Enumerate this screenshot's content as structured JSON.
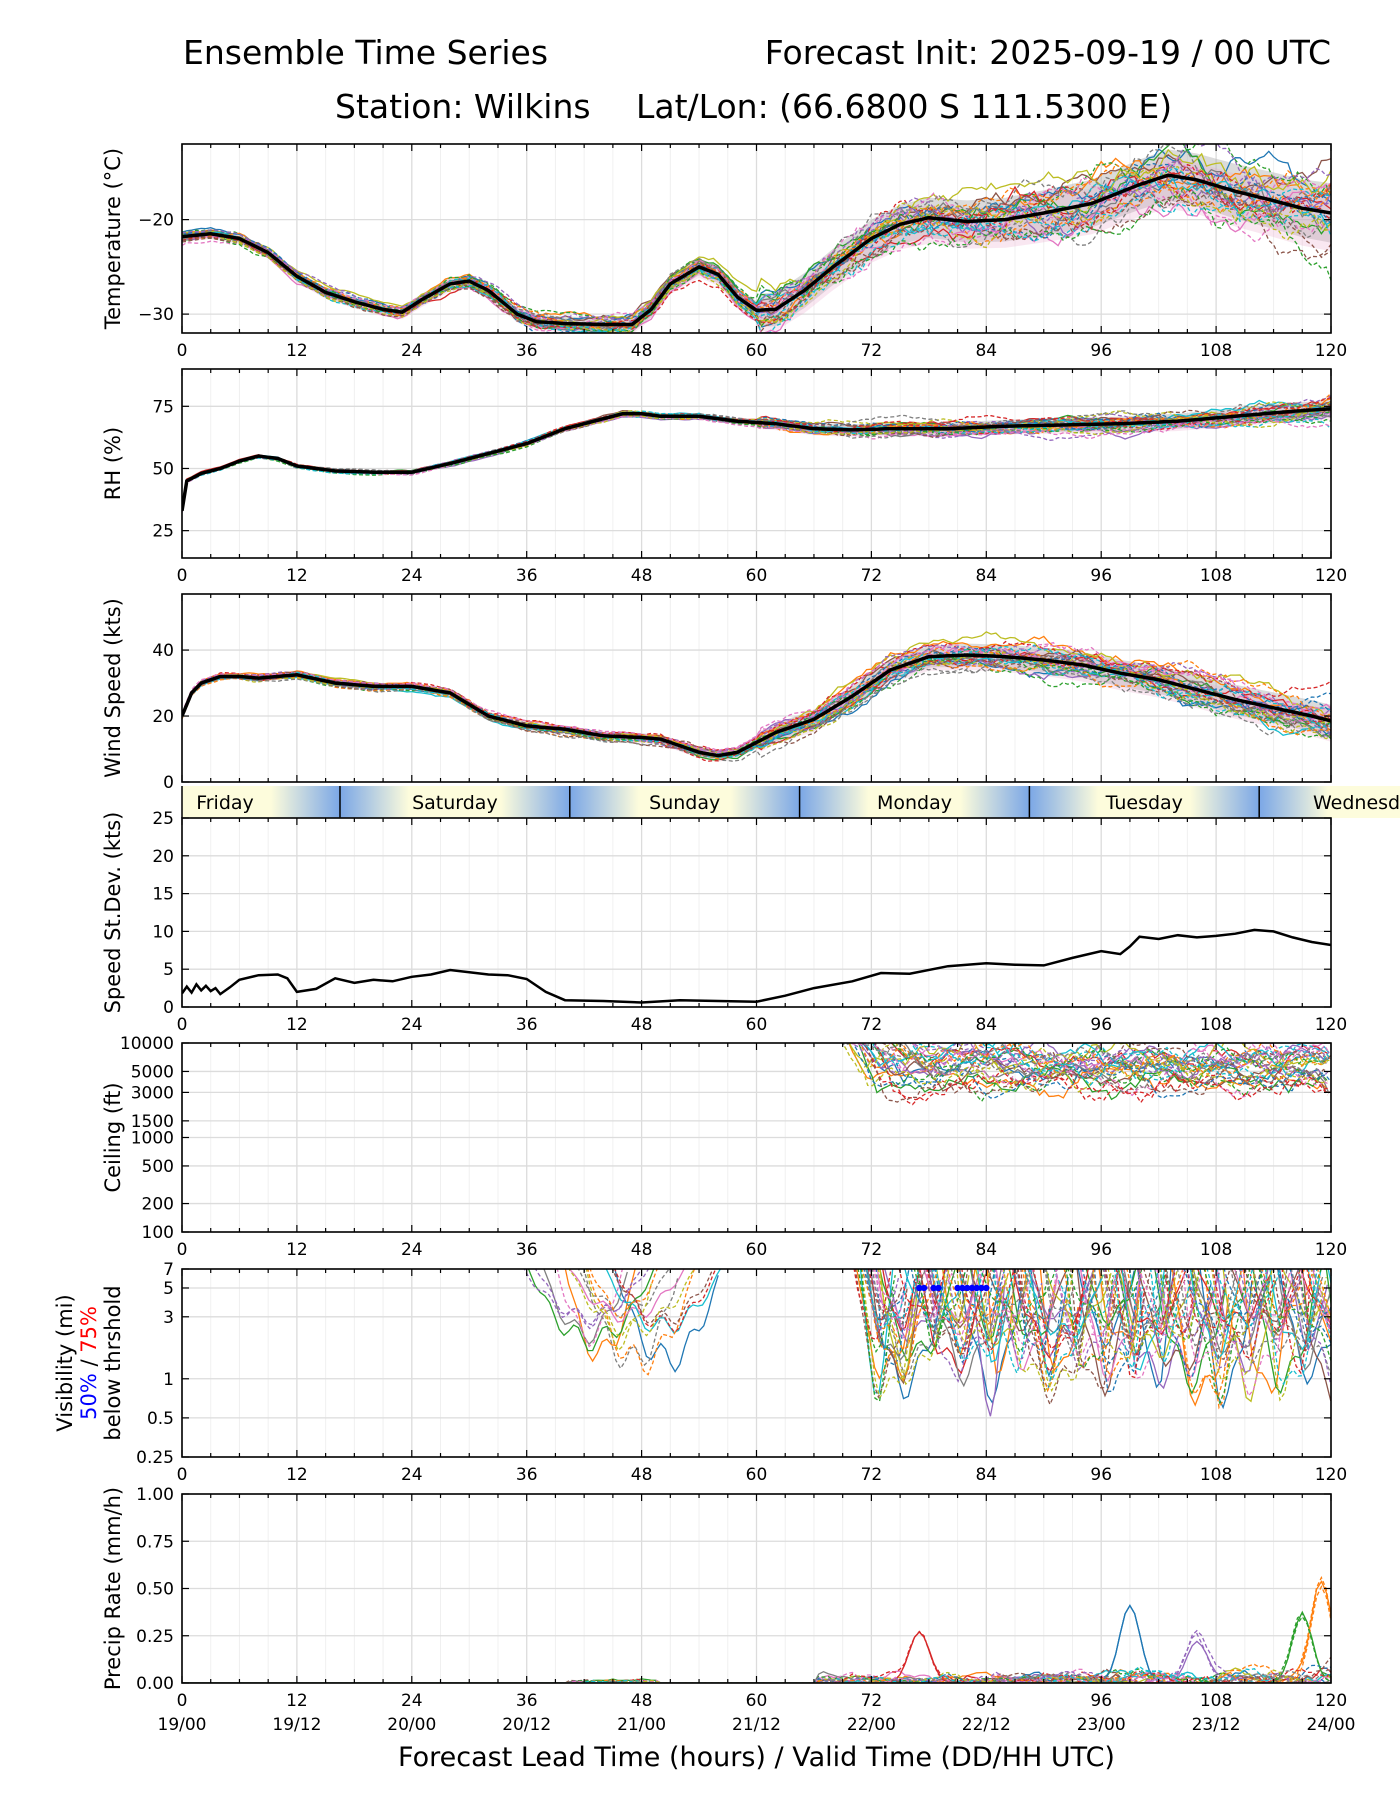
{
  "header": {
    "title_left": "Ensemble Time Series",
    "title_right": "Forecast Init: 2025-09-19 / 00 UTC",
    "station": "Station: Wilkins",
    "latlon": "Lat/Lon: (66.6800 S 111.5300 E)"
  },
  "colors": {
    "mean": "#000000",
    "members": [
      "#1f77b4",
      "#ff7f0e",
      "#2ca02c",
      "#d62728",
      "#9467bd",
      "#8c564b",
      "#e377c2",
      "#7f7f7f",
      "#bcbd22",
      "#17becf"
    ],
    "day_light": "#fdfcdc",
    "day_dark": "#7ba7e6",
    "vis_50": "#0000ff",
    "vis_75": "#ff0000"
  },
  "day_bar": {
    "labels": [
      "Friday",
      "Saturday",
      "Sunday",
      "Monday",
      "Tuesday",
      "Wednesday"
    ]
  },
  "chart_data": [
    {
      "type": "line",
      "name": "temperature",
      "ylabel": "Temperature (°C)",
      "xlim": [
        0,
        120
      ],
      "ylim": [
        -32,
        -12
      ],
      "yticks": [
        -30,
        -20
      ],
      "ytick_labels": [
        "−30",
        "−20"
      ],
      "xticks": [
        0,
        12,
        24,
        36,
        48,
        60,
        72,
        84,
        96,
        108,
        120
      ],
      "mean": {
        "x": [
          0,
          3,
          6,
          9,
          12,
          15,
          18,
          21,
          23,
          25,
          28,
          30,
          32,
          35,
          37,
          40,
          44,
          47,
          49,
          51,
          54,
          56,
          58,
          60,
          62,
          65,
          68,
          72,
          75,
          78,
          82,
          86,
          90,
          95,
          100,
          103,
          106,
          110,
          114,
          117,
          120
        ],
        "y": [
          -21.8,
          -21.5,
          -22,
          -23.5,
          -26,
          -27.7,
          -28.7,
          -29.5,
          -29.8,
          -28.5,
          -26.8,
          -26.5,
          -27.5,
          -30,
          -30.8,
          -31,
          -31.1,
          -31.1,
          -29.5,
          -26.8,
          -25,
          -25.8,
          -28.2,
          -29.6,
          -29.5,
          -27.5,
          -25,
          -22,
          -20.5,
          -19.8,
          -20.2,
          -20,
          -19.3,
          -18.3,
          -16.3,
          -15.3,
          -15.8,
          -17,
          -18,
          -18.8,
          -19.3
        ]
      },
      "spread": 4.5,
      "n_members": 30
    },
    {
      "type": "line",
      "name": "rh",
      "ylabel": "RH (%)",
      "xlim": [
        0,
        120
      ],
      "ylim": [
        14,
        90
      ],
      "yticks": [
        25,
        50,
        75
      ],
      "ytick_labels": [
        "25",
        "50",
        "75"
      ],
      "xticks": [
        0,
        12,
        24,
        36,
        48,
        60,
        72,
        84,
        96,
        108,
        120
      ],
      "mean": {
        "x": [
          0,
          0.5,
          2,
          4,
          6,
          8,
          10,
          12,
          16,
          20,
          24,
          28,
          32,
          36,
          40,
          44,
          46,
          48,
          50,
          54,
          58,
          62,
          66,
          70,
          74,
          80,
          86,
          92,
          98,
          104,
          110,
          116,
          120
        ],
        "y": [
          33,
          45,
          48,
          50,
          53,
          55,
          54,
          51,
          49,
          48.5,
          48.5,
          52,
          56,
          60,
          66,
          70,
          72,
          72,
          71,
          71,
          69,
          68,
          66,
          65.5,
          66,
          66,
          67,
          67.5,
          68,
          69,
          71,
          73,
          74
        ]
      },
      "spread": 5,
      "n_members": 30
    },
    {
      "type": "line",
      "name": "wind_speed",
      "ylabel": "Wind Speed (kts)",
      "xlim": [
        0,
        120
      ],
      "ylim": [
        0,
        57
      ],
      "yticks": [
        0,
        20,
        40
      ],
      "ytick_labels": [
        "0",
        "20",
        "40"
      ],
      "xticks": [
        0,
        12,
        24,
        36,
        48,
        60,
        72,
        84,
        96,
        108,
        120
      ],
      "mean": {
        "x": [
          0,
          1,
          2,
          4,
          6,
          8,
          10,
          12,
          16,
          20,
          24,
          28,
          32,
          36,
          40,
          44,
          48,
          50,
          52,
          54,
          56,
          58,
          60,
          62,
          66,
          70,
          74,
          78,
          82,
          86,
          90,
          94,
          98,
          102,
          106,
          110,
          114,
          118,
          120
        ],
        "y": [
          20,
          27,
          30,
          32,
          32,
          31.5,
          32,
          32.5,
          30,
          29,
          29,
          27,
          20,
          17,
          16,
          14,
          13.5,
          13,
          11,
          9,
          8,
          9,
          12,
          15,
          19,
          26,
          34,
          38,
          38.5,
          38,
          37,
          35.5,
          33,
          31,
          28,
          25,
          22.5,
          20,
          18.5
        ]
      },
      "spread": 7,
      "n_members": 30
    },
    {
      "type": "line",
      "name": "speed_stdev",
      "ylabel": "Speed St.Dev. (kts)",
      "xlim": [
        0,
        120
      ],
      "ylim": [
        0,
        25
      ],
      "yticks": [
        0,
        5,
        10,
        15,
        20,
        25
      ],
      "ytick_labels": [
        "0",
        "5",
        "10",
        "15",
        "20",
        "25"
      ],
      "xticks": [
        0,
        12,
        24,
        36,
        48,
        60,
        72,
        84,
        96,
        108,
        120
      ],
      "mean": {
        "x": [
          0,
          0.5,
          1,
          1.5,
          2,
          2.5,
          3,
          3.5,
          4,
          5,
          6,
          8,
          10,
          11,
          12,
          14,
          16,
          18,
          20,
          22,
          24,
          26,
          28,
          30,
          32,
          34,
          36,
          38,
          40,
          44,
          48,
          52,
          56,
          60,
          63,
          66,
          70,
          73,
          76,
          80,
          84,
          87,
          90,
          93,
          96,
          98,
          99,
          100,
          102,
          104,
          106,
          108,
          110,
          112,
          114,
          116,
          118,
          120
        ],
        "y": [
          1.8,
          2.7,
          1.9,
          3,
          2.2,
          2.8,
          2.1,
          2.5,
          1.7,
          2.6,
          3.6,
          4.2,
          4.3,
          3.8,
          2,
          2.4,
          3.8,
          3.2,
          3.6,
          3.4,
          4,
          4.3,
          4.9,
          4.6,
          4.3,
          4.2,
          3.7,
          2,
          0.9,
          0.8,
          0.6,
          0.9,
          0.8,
          0.7,
          1.5,
          2.5,
          3.4,
          4.5,
          4.4,
          5.4,
          5.8,
          5.6,
          5.5,
          6.5,
          7.4,
          7,
          8,
          9.3,
          9,
          9.5,
          9.2,
          9.4,
          9.7,
          10.2,
          10,
          9.2,
          8.6,
          8.2
        ]
      },
      "spread": 0,
      "n_members": 0
    },
    {
      "type": "line",
      "name": "ceiling",
      "ylabel": "Ceiling (ft)",
      "yscale": "log",
      "xlim": [
        0,
        120
      ],
      "ylim": [
        100,
        10000
      ],
      "yticks": [
        100,
        200,
        500,
        1000,
        1500,
        3000,
        5000,
        10000
      ],
      "ytick_labels": [
        "100",
        "200",
        "500",
        "1000",
        "1500",
        "3000",
        "5000",
        "10000"
      ],
      "xticks": [
        0,
        12,
        24,
        36,
        48,
        60,
        72,
        84,
        96,
        108,
        120
      ],
      "members_visible_from": 68,
      "members_visible_to": 120,
      "n_members": 30
    },
    {
      "type": "line",
      "name": "visibility",
      "ylabel": "Visibility (mi)",
      "ylabel2": "50%",
      "ylabel3": "75%",
      "ylabel4": "below thrshold",
      "label_sep": "/",
      "yscale": "log",
      "xlim": [
        0,
        120
      ],
      "ylim": [
        0.25,
        7
      ],
      "yticks": [
        0.25,
        0.5,
        1,
        3,
        5,
        7
      ],
      "ytick_labels": [
        "0.25",
        "0.5",
        "1",
        "3",
        "5",
        "7"
      ],
      "xticks": [
        0,
        12,
        24,
        36,
        48,
        60,
        72,
        84,
        96,
        108,
        120
      ],
      "threshold_50_hours": [
        77,
        77.5,
        78.5,
        79,
        81,
        81.5,
        82,
        82.5,
        83,
        83.5,
        84
      ],
      "threshold_50_value": 5,
      "n_members": 30
    },
    {
      "type": "line",
      "name": "precip_rate",
      "ylabel": "Precip Rate (mm/h)",
      "xlim": [
        0,
        120
      ],
      "ylim": [
        0,
        1
      ],
      "yticks": [
        0,
        0.25,
        0.5,
        0.75,
        1
      ],
      "ytick_labels": [
        "0.00",
        "0.25",
        "0.50",
        "0.75",
        "1.00"
      ],
      "xticks": [
        0,
        12,
        24,
        36,
        48,
        60,
        72,
        84,
        96,
        108,
        120
      ],
      "peaks": [
        {
          "x": 99,
          "y": 0.41
        },
        {
          "x": 119,
          "y": 0.51
        },
        {
          "x": 117,
          "y": 0.35
        },
        {
          "x": 77,
          "y": 0.27
        },
        {
          "x": 106,
          "y": 0.22
        }
      ],
      "n_members": 30
    }
  ],
  "x_axis": {
    "hour_labels": [
      "0",
      "12",
      "24",
      "36",
      "48",
      "60",
      "72",
      "84",
      "96",
      "108",
      "120"
    ],
    "valid_labels": [
      "19/00",
      "19/12",
      "20/00",
      "20/12",
      "21/00",
      "21/12",
      "22/00",
      "22/12",
      "23/00",
      "23/12",
      "24/00"
    ],
    "xlabel": "Forecast Lead Time (hours) / Valid Time (DD/HH UTC)"
  }
}
